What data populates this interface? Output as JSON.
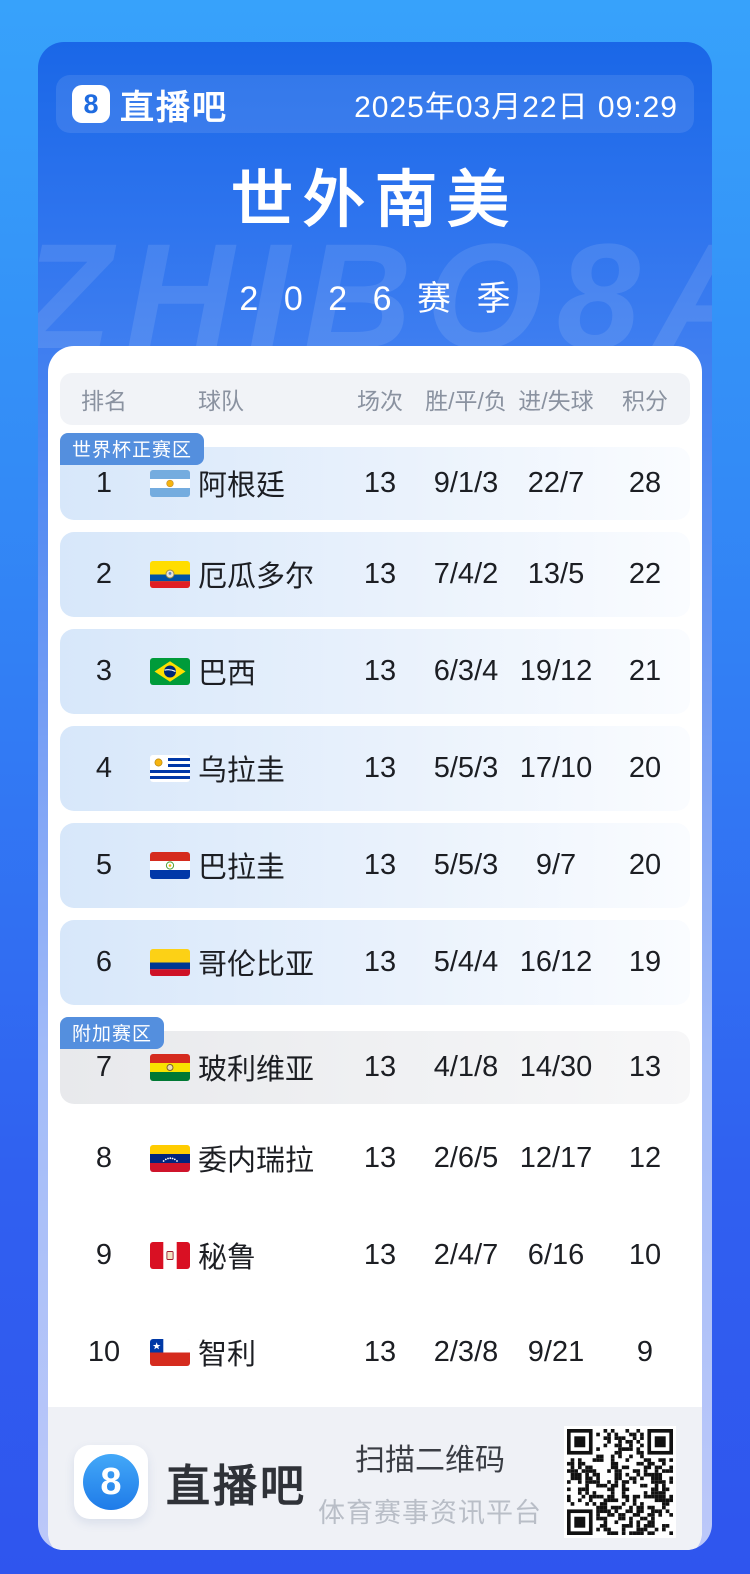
{
  "header": {
    "brand": "直播吧",
    "logo_glyph": "8",
    "datetime": "2025年03月22日 09:29"
  },
  "hero": {
    "title": "世外南美",
    "season": "2026赛季",
    "watermark": "ZHIBO8A"
  },
  "table": {
    "columns": [
      "排名",
      "球队",
      "场次",
      "胜/平/负",
      "进/失球",
      "积分"
    ],
    "zone_labels": {
      "qualification": "世界杯正赛区",
      "playoff": "附加赛区"
    },
    "rows": [
      {
        "rank": "1",
        "badge": "世界杯正赛区",
        "highlight": "blue",
        "flag": "argentina",
        "team": "阿根廷",
        "played": "13",
        "wdl": "9/1/3",
        "goals": "22/7",
        "points": "28"
      },
      {
        "rank": "2",
        "highlight": "blue",
        "flag": "ecuador",
        "team": "厄瓜多尔",
        "played": "13",
        "wdl": "7/4/2",
        "goals": "13/5",
        "points": "22"
      },
      {
        "rank": "3",
        "highlight": "blue",
        "flag": "brazil",
        "team": "巴西",
        "played": "13",
        "wdl": "6/3/4",
        "goals": "19/12",
        "points": "21"
      },
      {
        "rank": "4",
        "highlight": "blue",
        "flag": "uruguay",
        "team": "乌拉圭",
        "played": "13",
        "wdl": "5/5/3",
        "goals": "17/10",
        "points": "20"
      },
      {
        "rank": "5",
        "highlight": "blue",
        "flag": "paraguay",
        "team": "巴拉圭",
        "played": "13",
        "wdl": "5/5/3",
        "goals": "9/7",
        "points": "20"
      },
      {
        "rank": "6",
        "highlight": "blue",
        "flag": "colombia",
        "team": "哥伦比亚",
        "played": "13",
        "wdl": "5/4/4",
        "goals": "16/12",
        "points": "19"
      },
      {
        "rank": "7",
        "badge": "附加赛区",
        "highlight": "gray",
        "flag": "bolivia",
        "team": "玻利维亚",
        "played": "13",
        "wdl": "4/1/8",
        "goals": "14/30",
        "points": "13"
      },
      {
        "rank": "8",
        "highlight": "none",
        "flag": "venezuela",
        "team": "委内瑞拉",
        "played": "13",
        "wdl": "2/6/5",
        "goals": "12/17",
        "points": "12"
      },
      {
        "rank": "9",
        "highlight": "none",
        "flag": "peru",
        "team": "秘鲁",
        "played": "13",
        "wdl": "2/4/7",
        "goals": "6/16",
        "points": "10"
      },
      {
        "rank": "10",
        "highlight": "none",
        "flag": "chile",
        "team": "智利",
        "played": "13",
        "wdl": "2/3/8",
        "goals": "9/21",
        "points": "9"
      }
    ]
  },
  "footer": {
    "brand": "直播吧",
    "logo_glyph": "8",
    "scan_title": "扫描二维码",
    "scan_subtitle": "体育赛事资讯平台"
  },
  "colors": {
    "bg_top": "#37A2FB",
    "bg_bottom": "#2F55EE",
    "panel_top": "#1A67E7",
    "panel_bottom": "#BCC8F9",
    "badge": "#548FDE",
    "row_blue": "#D7E7FA",
    "row_gray": "#E8E9EC",
    "thead_bg": "#F1F3F7",
    "thead_text": "#8A92A0",
    "text_dark": "#1C1E23",
    "footer_bg": "#EFF1F6"
  }
}
